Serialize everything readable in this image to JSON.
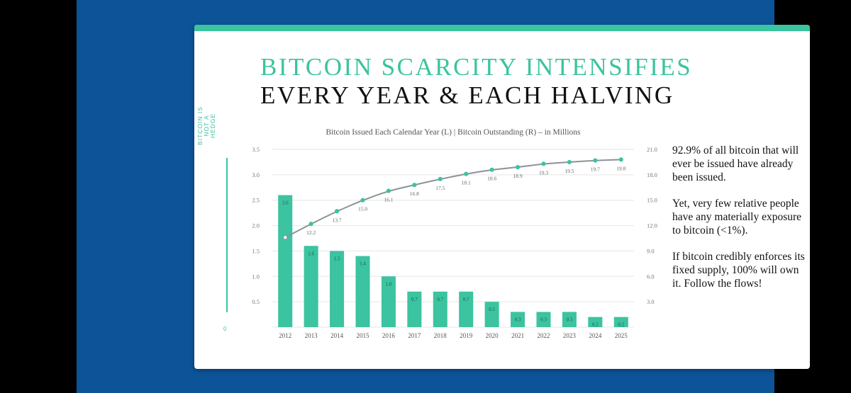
{
  "title": {
    "line1": "BITCOIN SCARCITY INTENSIFIES",
    "line2": "EVERY YEAR & EACH HALVING"
  },
  "sidebar": {
    "tag": "BITCOIN IS NOT A HEDGE",
    "number": "0"
  },
  "notes": [
    "92.9% of all bitcoin that will ever be issued have already been issued.",
    "Yet, very few relative people have any materially exposure to bitcoin (<1%).",
    "If bitcoin credibly enforces its fixed supply, 100% will own it. Follow the flows!"
  ],
  "colors": {
    "accent": "#3cc3a0",
    "line": "#8a9399",
    "background": "#0c5398"
  },
  "chart_data": {
    "type": "bar",
    "title": "Bitcoin Issued Each Calendar Year (L) | Bitcoin Outstanding (R) – in Millions",
    "categories": [
      "2012",
      "2013",
      "2014",
      "2015",
      "2016",
      "2017",
      "2018",
      "2019",
      "2020",
      "2021",
      "2022",
      "2023",
      "2024",
      "2025"
    ],
    "series": [
      {
        "type": "bar",
        "axis": "left",
        "values": [
          2.6,
          1.6,
          1.5,
          1.4,
          1.0,
          0.7,
          0.7,
          0.7,
          0.5,
          0.3,
          0.3,
          0.3,
          0.2,
          0.2
        ],
        "labels": [
          "2.6",
          "1.6",
          "1.5",
          "1.4",
          "1.0",
          "0.7",
          "0.7",
          "0.7",
          "0.5",
          "0.3",
          "0.3",
          "0.3",
          "0.2",
          "0.2"
        ]
      },
      {
        "type": "line",
        "axis": "right",
        "values": [
          10.6,
          12.2,
          13.7,
          15.0,
          16.1,
          16.8,
          17.5,
          18.1,
          18.6,
          18.9,
          19.3,
          19.5,
          19.7,
          19.8
        ],
        "labels": [
          "",
          "12.2",
          "13.7",
          "15.0",
          "16.1",
          "16.8",
          "17.5",
          "18.1",
          "18.6",
          "18.9",
          "19.3",
          "19.5",
          "19.7",
          "19.8"
        ]
      }
    ],
    "y_left": {
      "range": [
        0,
        3.5
      ],
      "ticks": [
        "",
        "0.5",
        "1.0",
        "1.5",
        "2.0",
        "2.5",
        "3.0",
        "3.5"
      ]
    },
    "y_right": {
      "range": [
        0,
        21.0
      ],
      "ticks": [
        "",
        "3.0",
        "6.0",
        "9.0",
        "12.0",
        "15.0",
        "18.0",
        "21.0"
      ]
    },
    "grid": true
  }
}
